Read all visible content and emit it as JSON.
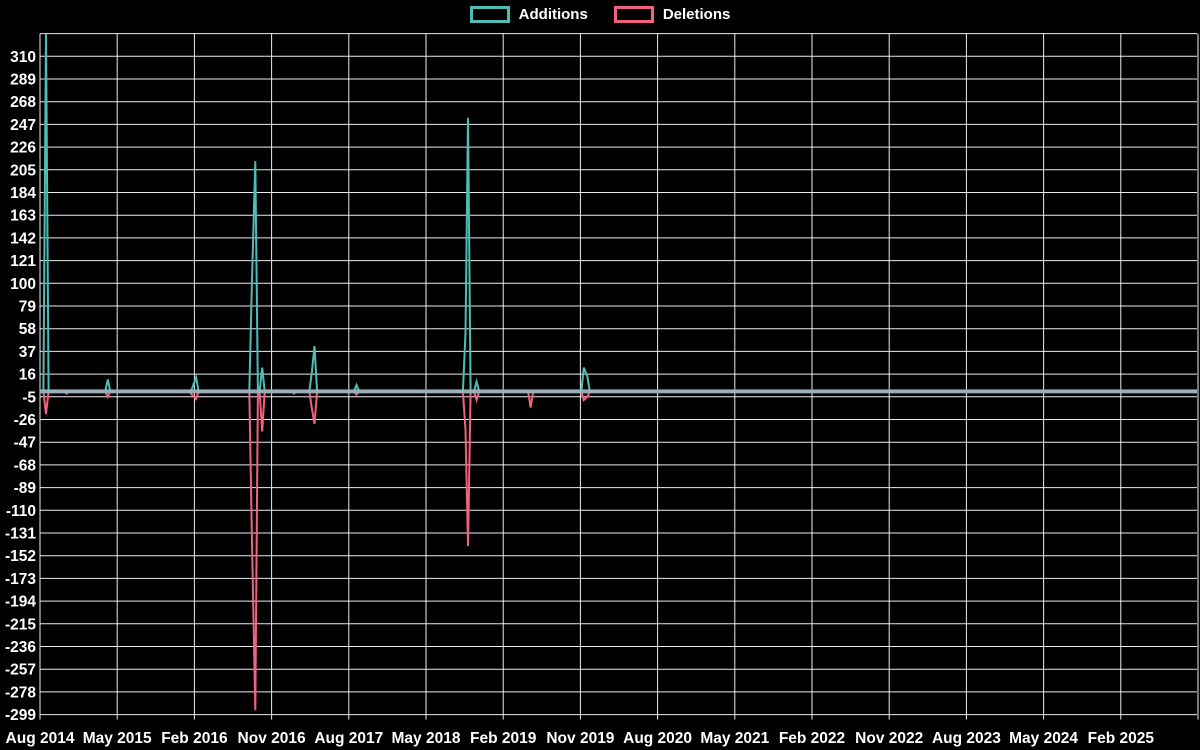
{
  "legend": {
    "additions_label": "Additions",
    "deletions_label": "Deletions"
  },
  "colors": {
    "additions": "#4DBEB6",
    "deletions": "#F2617E",
    "baseline": "#9DB4BE",
    "grid": "#FFFFFF",
    "background": "#000000",
    "text": "#FFFFFF"
  },
  "chart_data": {
    "type": "line",
    "title": "",
    "xlabel": "",
    "ylabel": "",
    "legend_position": "top-center",
    "grid": true,
    "x_tick_labels": [
      "Aug 2014",
      "May 2015",
      "Feb 2016",
      "Nov 2016",
      "Aug 2017",
      "May 2018",
      "Feb 2019",
      "Nov 2019",
      "Aug 2020",
      "May 2021",
      "Feb 2022",
      "Nov 2022",
      "Aug 2023",
      "May 2024",
      "Feb 2025"
    ],
    "x_tick_interval_months": 9,
    "x_range_months": [
      0,
      135
    ],
    "y_ticks": [
      310,
      289,
      268,
      247,
      226,
      205,
      184,
      163,
      142,
      121,
      100,
      79,
      58,
      37,
      16,
      -5,
      -26,
      -47,
      -68,
      -89,
      -110,
      -131,
      -152,
      -173,
      -194,
      -215,
      -236,
      -257,
      -278,
      -299
    ],
    "y_tick_step": 21,
    "y_axis_top_value": 331,
    "ylim": [
      -299,
      331
    ],
    "series_names": [
      "Additions",
      "Deletions"
    ],
    "baseline_value": 0,
    "spikes": [
      {
        "t": 0.7,
        "additions": 331,
        "deletions": -21
      },
      {
        "t": 3.1,
        "additions": 0,
        "deletions": -2
      },
      {
        "t": 7.9,
        "additions": 11,
        "deletions": -5
      },
      {
        "t": 17.7,
        "additions": 2,
        "deletions": -3
      },
      {
        "t": 18.2,
        "additions": 13,
        "deletions": -7
      },
      {
        "t": 24.7,
        "additions": 100,
        "deletions": -135
      },
      {
        "t": 25.1,
        "additions": 213,
        "deletions": -295
      },
      {
        "t": 25.9,
        "additions": 22,
        "deletions": -37
      },
      {
        "t": 27.6,
        "additions": 1,
        "deletions": 0
      },
      {
        "t": 29.6,
        "additions": 0,
        "deletions": -2
      },
      {
        "t": 31.7,
        "additions": 18,
        "deletions": -16
      },
      {
        "t": 32.0,
        "additions": 42,
        "deletions": -30
      },
      {
        "t": 36.9,
        "additions": 6,
        "deletions": -3
      },
      {
        "t": 49.6,
        "additions": 54,
        "deletions": -36
      },
      {
        "t": 49.9,
        "additions": 253,
        "deletions": -143
      },
      {
        "t": 50.9,
        "additions": 9,
        "deletions": -8
      },
      {
        "t": 57.2,
        "additions": 0,
        "deletions": -15
      },
      {
        "t": 63.4,
        "additions": 22,
        "deletions": -8
      },
      {
        "t": 63.8,
        "additions": 14,
        "deletions": -5
      }
    ]
  }
}
